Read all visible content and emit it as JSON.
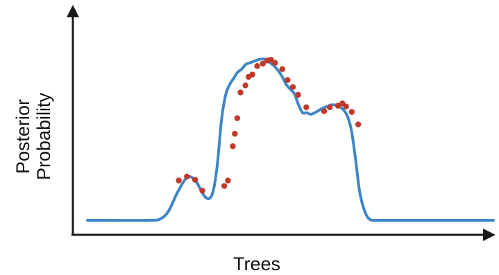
{
  "labels": {
    "x_axis": "Trees",
    "y_axis_line1": "Posterior",
    "y_axis_line2": "Probability"
  },
  "colors": {
    "axis": "#1a1a1a",
    "curve": "#3f86c8",
    "sample_point": "#c0392b",
    "background": "#ffffff"
  },
  "chart_data": {
    "type": "line",
    "title": "",
    "xlabel": "Trees",
    "ylabel": "Posterior Probability",
    "xlim": [
      0,
      100
    ],
    "ylim": [
      0,
      100
    ],
    "grid": false,
    "legend": "none",
    "curve": {
      "x": [
        0,
        15,
        18,
        20,
        22,
        24,
        25,
        26,
        27,
        28,
        29,
        30,
        31,
        32,
        33,
        34,
        35,
        36,
        37,
        38,
        39,
        40,
        41,
        42,
        43,
        44,
        45,
        46,
        47,
        48,
        49,
        50,
        51,
        52,
        53,
        54,
        55,
        56,
        57,
        58,
        59,
        60,
        61,
        62,
        63,
        64,
        65,
        66,
        67,
        68,
        69,
        70,
        71,
        72,
        74,
        76,
        78,
        80,
        100
      ],
      "y": [
        0,
        0,
        1,
        6,
        17,
        26,
        28,
        27,
        24,
        19,
        15,
        14,
        19,
        36,
        64,
        80,
        87,
        91,
        95,
        97,
        100,
        101,
        102,
        103,
        103.5,
        103,
        101,
        99,
        96,
        92,
        87,
        84,
        81,
        74,
        69,
        69,
        68,
        69,
        70.5,
        72,
        73,
        74,
        74,
        73,
        71,
        67,
        58,
        40,
        19,
        8,
        2,
        0,
        0,
        0,
        0,
        0,
        0,
        0,
        0
      ]
    },
    "samples": {
      "x": [
        22.5,
        24.5,
        26.5,
        28.3,
        33.7,
        34.6,
        35.8,
        36.3,
        36.9,
        37.7,
        38.9,
        39.7,
        40.6,
        41.8,
        43.2,
        44.3,
        45.2,
        46.2,
        48.0,
        49.3,
        50.6,
        51.9,
        53.9,
        58.3,
        59.7,
        61.7,
        62.8,
        63.7,
        65.1,
        66.7
      ],
      "y": [
        25.5,
        28.0,
        26.0,
        19.0,
        22.0,
        25.5,
        47.5,
        55.5,
        65.5,
        82.0,
        86.5,
        92.0,
        93.5,
        99.0,
        100.5,
        102.5,
        103.0,
        101.0,
        97.0,
        90.0,
        85.5,
        80.5,
        72.5,
        70.0,
        72.5,
        73.5,
        75.0,
        73.0,
        69.5,
        61.5
      ]
    }
  }
}
